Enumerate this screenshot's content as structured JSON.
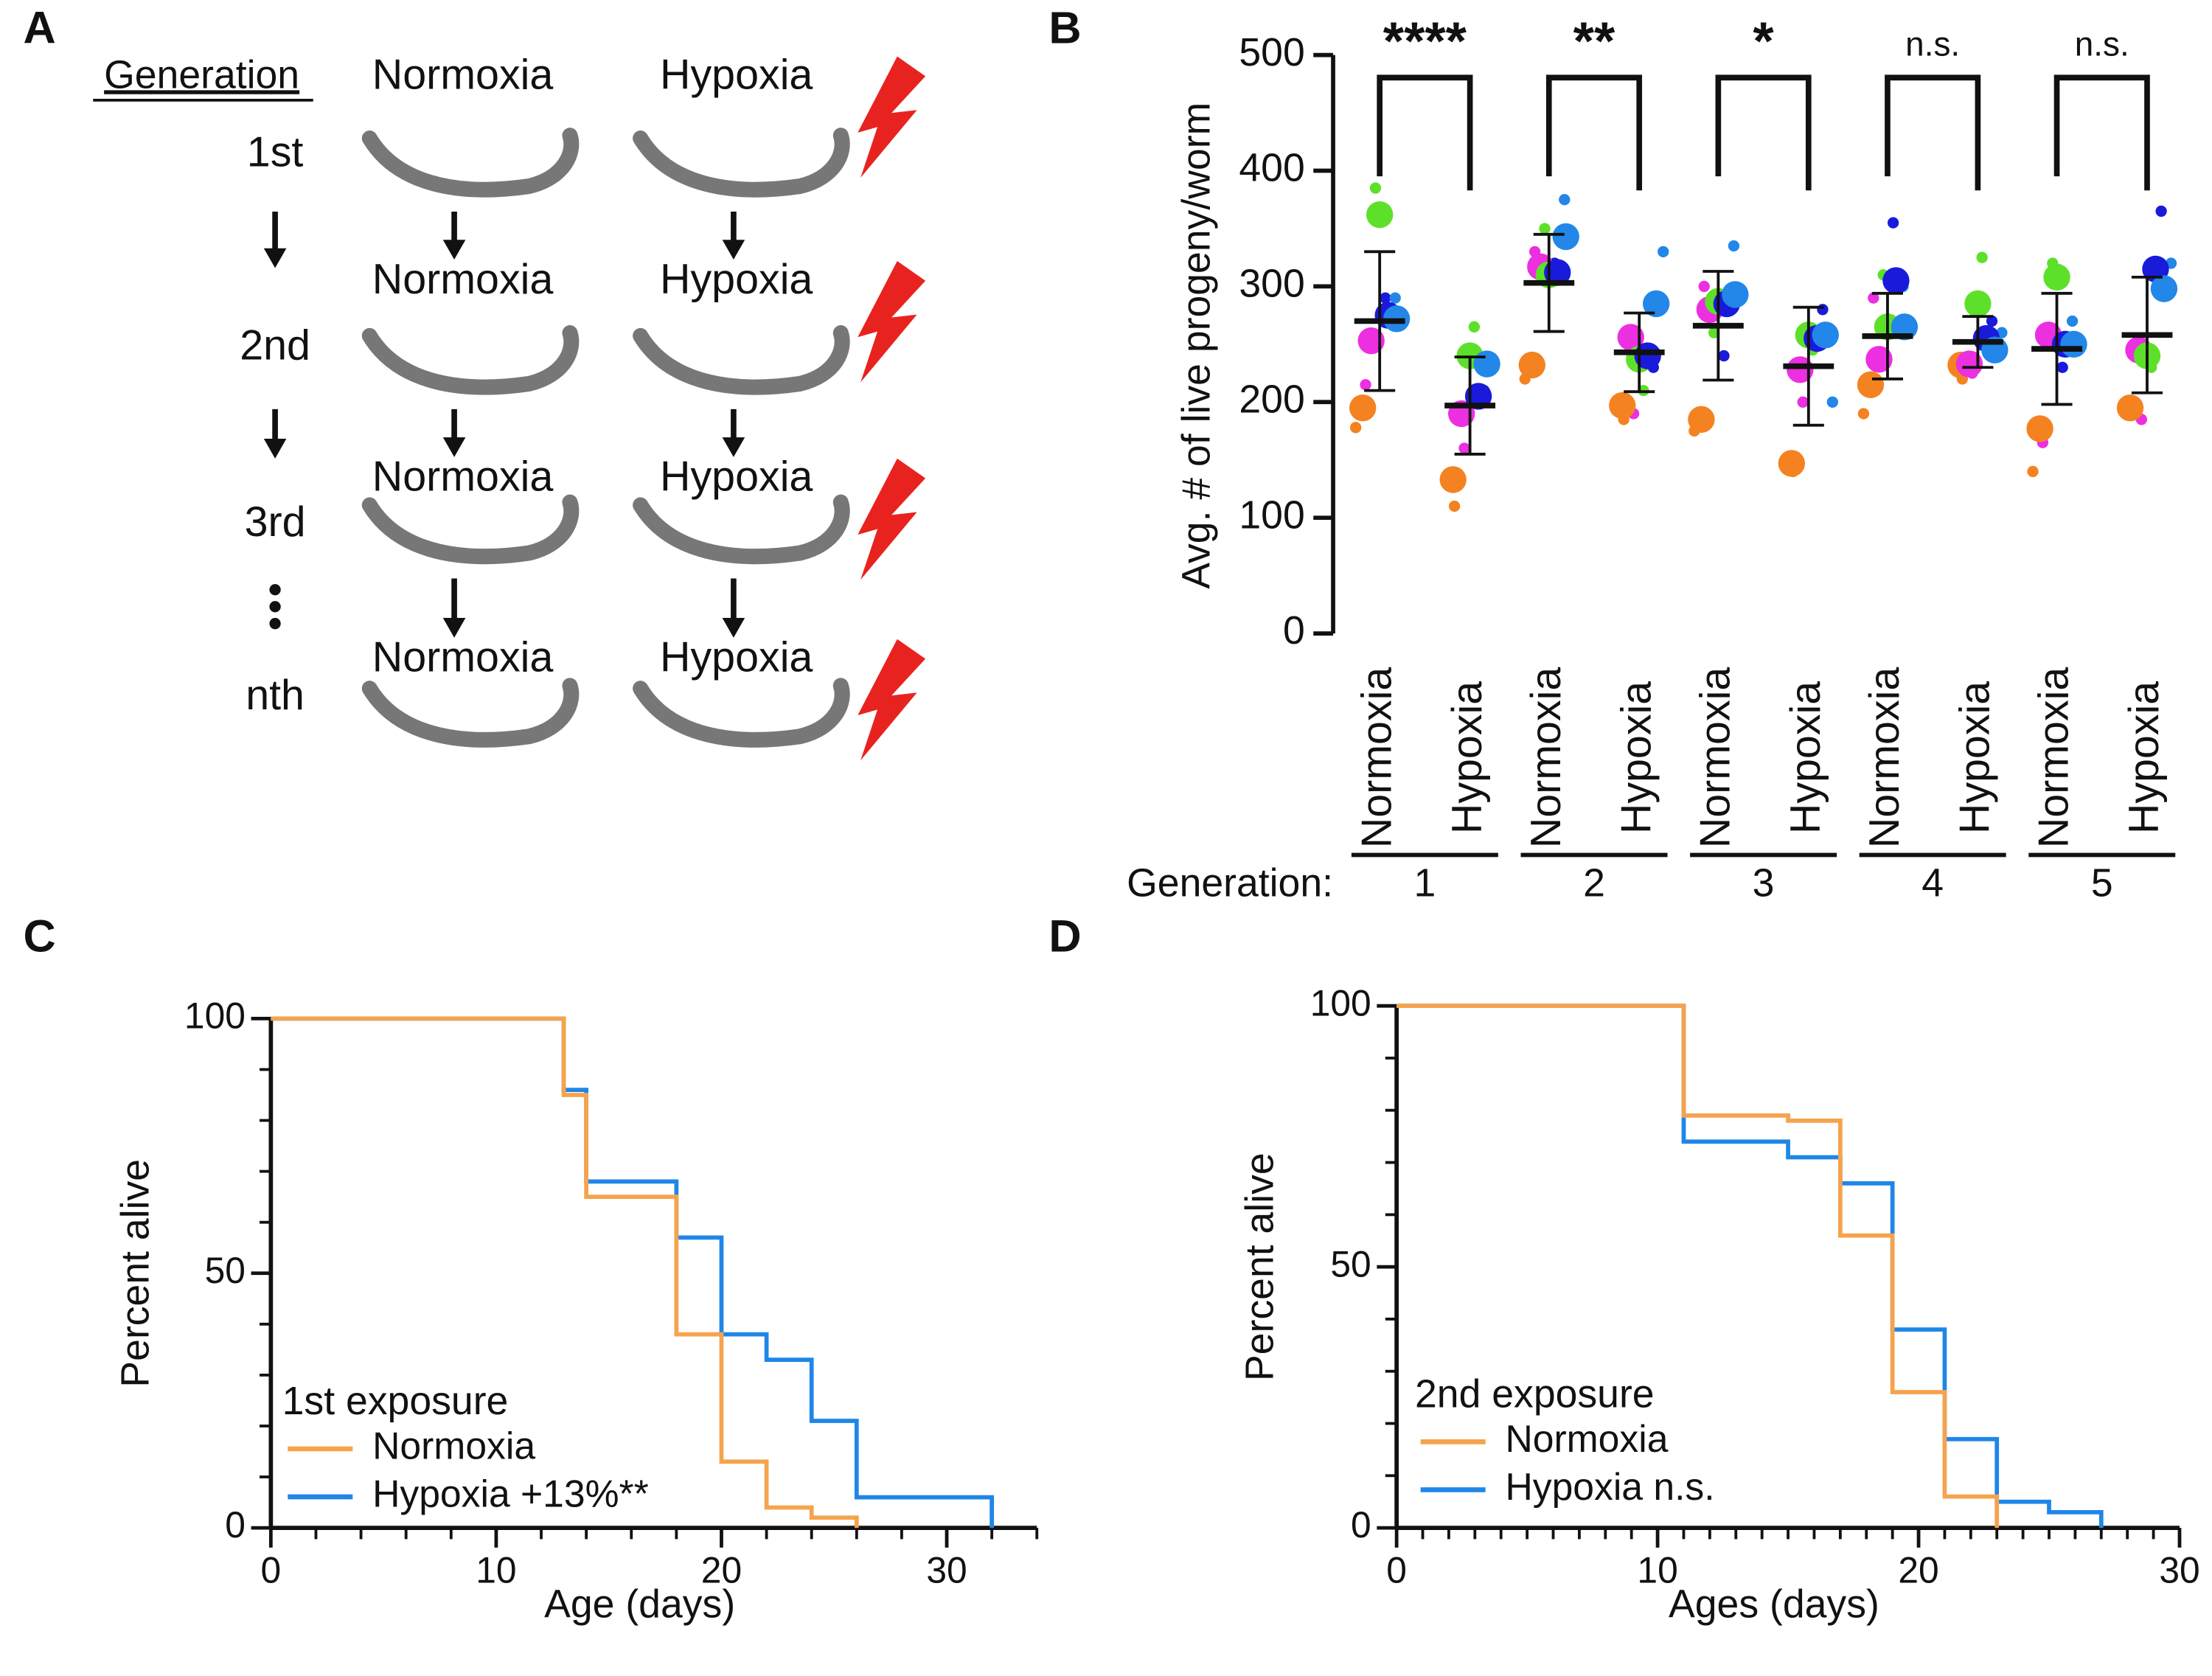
{
  "diagram": {
    "label": "A",
    "header": "Generation",
    "rows": [
      {
        "generation": "1st",
        "normoxia": "Normoxia",
        "hypoxia": "Hypoxia"
      },
      {
        "generation": "2nd",
        "normoxia": "Normoxia",
        "hypoxia": "Hypoxia"
      },
      {
        "generation": "3rd",
        "normoxia": "Normoxia",
        "hypoxia": "Hypoxia"
      },
      {
        "generation": "nth",
        "normoxia": "Normoxia",
        "hypoxia": "Hypoxia"
      }
    ]
  },
  "chart_data": [
    {
      "type": "dot",
      "label": "B",
      "ylabel": "Avg. # of live progeny/worm",
      "ylim": [
        0,
        500
      ],
      "yticks": [
        0,
        100,
        200,
        300,
        400,
        500
      ],
      "categories": [
        "Normoxia",
        "Hypoxia",
        "Normoxia",
        "Hypoxia",
        "Normoxia",
        "Hypoxia",
        "Normoxia",
        "Hypoxia",
        "Normoxia",
        "Hypoxia"
      ],
      "category_colors": [
        "#f39a2e",
        "#4fbf9c",
        "#f39a2e",
        "#4fbf9c",
        "#f39a2e",
        "#4fbf9c",
        "#f39a2e",
        "#4fbf9c",
        "#f39a2e",
        "#4fbf9c"
      ],
      "group_label": "Generation:",
      "groups": [
        "1",
        "2",
        "3",
        "4",
        "5"
      ],
      "significance": [
        "****",
        "**",
        "*",
        "n.s.",
        "n.s."
      ],
      "means": [
        270,
        197,
        303,
        243,
        266,
        231,
        257,
        252,
        246,
        258
      ],
      "errors": [
        60,
        42,
        42,
        34,
        47,
        51,
        37,
        22,
        48,
        50
      ],
      "series": [
        {
          "color": "#f58220",
          "values": [
            195,
            133,
            232,
            197,
            185,
            147,
            215,
            232,
            177,
            195
          ]
        },
        {
          "color": "#ec2fe0",
          "values": [
            253,
            190,
            317,
            256,
            280,
            228,
            237,
            233,
            258,
            245
          ]
        },
        {
          "color": "#5de02a",
          "values": [
            362,
            240,
            310,
            237,
            287,
            258,
            265,
            285,
            308,
            240
          ]
        },
        {
          "color": "#1a1adb",
          "values": [
            275,
            205,
            312,
            240,
            285,
            255,
            305,
            255,
            250,
            315
          ]
        },
        {
          "color": "#2287e8",
          "values": [
            272,
            233,
            343,
            285,
            293,
            258,
            265,
            245,
            250,
            298
          ]
        }
      ],
      "small_series": [
        {
          "color": "#f58220",
          "values": [
            178,
            110,
            220,
            185,
            175,
            140,
            190,
            220,
            140,
            200
          ]
        },
        {
          "color": "#ec2fe0",
          "values": [
            215,
            160,
            330,
            190,
            300,
            200,
            290,
            225,
            165,
            185
          ]
        },
        {
          "color": "#5de02a",
          "values": [
            385,
            265,
            350,
            210,
            260,
            245,
            310,
            325,
            320,
            230
          ]
        },
        {
          "color": "#1a1adb",
          "values": [
            290,
            210,
            320,
            230,
            240,
            280,
            355,
            270,
            230,
            365
          ]
        },
        {
          "color": "#2287e8",
          "values": [
            290,
            230,
            375,
            330,
            335,
            200,
            300,
            260,
            270,
            320
          ]
        }
      ]
    },
    {
      "type": "step",
      "label": "C",
      "xlabel": "Age (days)",
      "ylabel": "Percent alive",
      "xlim": [
        0,
        34
      ],
      "xticks": [
        0,
        10,
        20,
        30
      ],
      "xminorticks": [
        2,
        4,
        6,
        8,
        12,
        14,
        16,
        18,
        22,
        24,
        26,
        28,
        32,
        34
      ],
      "ylim": [
        0,
        100
      ],
      "yticks": [
        0,
        50,
        100
      ],
      "yminorticks": [
        10,
        20,
        30,
        40,
        60,
        70,
        80,
        90
      ],
      "legend_title": "1st exposure",
      "series": [
        {
          "name": "Normoxia",
          "color": "#f6a34d",
          "x": [
            0,
            13,
            14,
            18,
            20,
            22,
            24,
            26
          ],
          "values": [
            100,
            85,
            65,
            38,
            13,
            4,
            2,
            0
          ]
        },
        {
          "name": "Hypoxia +13%**",
          "color": "#1f86e8",
          "x": [
            0,
            13,
            14,
            18,
            20,
            22,
            24,
            26,
            32
          ],
          "values": [
            100,
            86,
            68,
            57,
            38,
            33,
            21,
            6,
            0
          ]
        }
      ]
    },
    {
      "type": "step",
      "label": "D",
      "xlabel": "Ages (days)",
      "ylabel": "Percent alive",
      "xlim": [
        0,
        30
      ],
      "xticks": [
        0,
        10,
        20,
        30
      ],
      "xminorticks": [
        1,
        2,
        3,
        4,
        5,
        6,
        7,
        8,
        9,
        11,
        12,
        13,
        14,
        15,
        16,
        17,
        18,
        19,
        21,
        22,
        23,
        24,
        25,
        26,
        27,
        28,
        29
      ],
      "ylim": [
        0,
        100
      ],
      "yticks": [
        0,
        50,
        100
      ],
      "yminorticks": [
        10,
        20,
        30,
        40,
        60,
        70,
        80,
        90
      ],
      "legend_title": "2nd exposure",
      "series": [
        {
          "name": "Normoxia",
          "color": "#f6a34d",
          "x": [
            0,
            11,
            15,
            17,
            19,
            21,
            23
          ],
          "values": [
            100,
            79,
            78,
            56,
            26,
            6,
            0
          ]
        },
        {
          "name": "Hypoxia n.s.",
          "color": "#1f86e8",
          "x": [
            0,
            11,
            15,
            17,
            19,
            21,
            23,
            25,
            27
          ],
          "values": [
            100,
            74,
            71,
            66,
            38,
            17,
            5,
            3,
            0
          ]
        }
      ]
    }
  ]
}
